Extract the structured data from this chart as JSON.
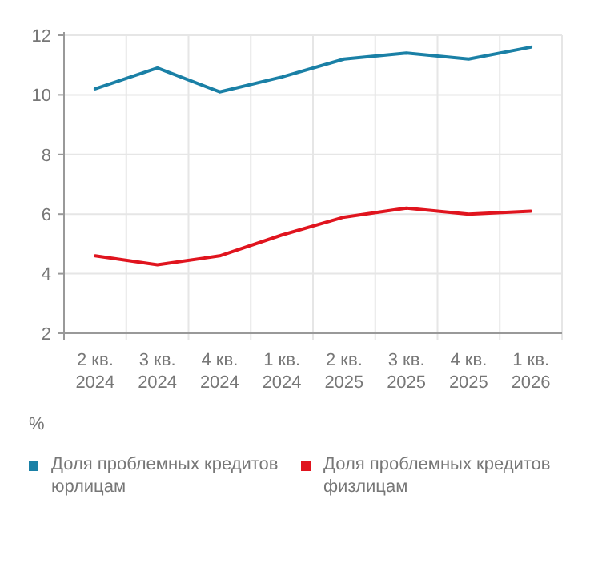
{
  "chart_data": {
    "type": "line",
    "ylabel": "%",
    "categories": [
      "2 кв. 2024",
      "3 кв. 2024",
      "4 кв. 2024",
      "1 кв. 2024",
      "2 кв. 2025",
      "3 кв. 2025",
      "4 кв. 2025",
      "1 кв. 2026"
    ],
    "series": [
      {
        "name": "Доля проблемных кредитов юрлицам",
        "color": "#1a80a6",
        "values": [
          10.2,
          10.9,
          10.1,
          10.6,
          11.2,
          11.4,
          11.2,
          11.6
        ]
      },
      {
        "name": "Доля проблемных кредитов физлицам",
        "color": "#e0141e",
        "values": [
          4.6,
          4.3,
          4.6,
          5.3,
          5.9,
          6.2,
          6.0,
          6.1
        ]
      }
    ],
    "ylim": [
      2,
      12
    ],
    "yticks": [
      2,
      4,
      6,
      8,
      10,
      12
    ],
    "grid": true,
    "legend": "bottom"
  }
}
